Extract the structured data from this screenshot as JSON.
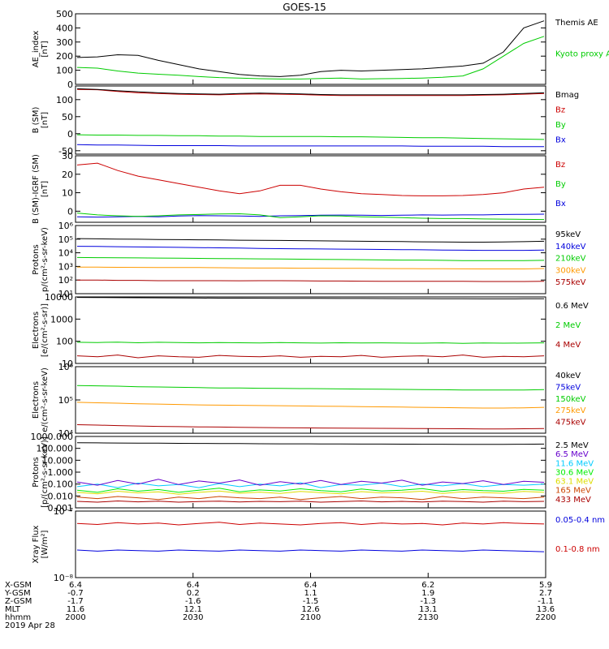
{
  "title": "GOES-15",
  "colors": {
    "black": "#000000",
    "green": "#00cc00",
    "blue": "#0000dd",
    "red": "#cc0000",
    "orange": "#ff9900",
    "cyan": "#00ccff",
    "purple": "#6600cc",
    "lightgreen": "#00ee00",
    "yellow": "#dddd00",
    "darkred": "#aa0000",
    "darkorange": "#cc4400"
  },
  "chart_data": [
    {
      "type": "line",
      "ylabel": "AE_index\n[nT]",
      "yscale": "linear",
      "ylim": [
        0,
        500
      ],
      "yticks": [
        "0",
        "100",
        "200",
        "300",
        "400",
        "500"
      ],
      "series": [
        {
          "name": "Kyoto proxy AE",
          "color": "green",
          "values": [
            120,
            115,
            95,
            80,
            72,
            65,
            55,
            48,
            45,
            40,
            38,
            38,
            42,
            44,
            38,
            40,
            42,
            45,
            50,
            60,
            110,
            200,
            290,
            340
          ]
        },
        {
          "name": "Themis AE",
          "color": "black",
          "values": [
            190,
            195,
            210,
            205,
            170,
            140,
            110,
            90,
            70,
            60,
            55,
            65,
            90,
            100,
            95,
            100,
            105,
            110,
            120,
            130,
            150,
            230,
            400,
            450
          ]
        }
      ]
    },
    {
      "type": "line",
      "ylabel": "B (SM)\n[nT]",
      "yscale": "linear",
      "ylim": [
        -60,
        140
      ],
      "yticks": [
        "-50",
        "0",
        "50",
        "100"
      ],
      "series": [
        {
          "name": "Bx",
          "color": "blue",
          "values": [
            -32,
            -33,
            -33,
            -34,
            -35,
            -35,
            -35,
            -35,
            -36,
            -36,
            -36,
            -36,
            -36,
            -36,
            -36,
            -36,
            -36,
            -37,
            -37,
            -37,
            -37,
            -38,
            -38,
            -38
          ]
        },
        {
          "name": "By",
          "color": "green",
          "values": [
            -3,
            -4,
            -4,
            -5,
            -5,
            -6,
            -6,
            -7,
            -7,
            -8,
            -8,
            -8,
            -8,
            -9,
            -9,
            -10,
            -11,
            -12,
            -12,
            -13,
            -14,
            -15,
            -16,
            -17
          ]
        },
        {
          "name": "Bz",
          "color": "red",
          "values": [
            130,
            129,
            124,
            120,
            118,
            116,
            115,
            114,
            116,
            117,
            116,
            115,
            113,
            112,
            112,
            112,
            112,
            112,
            112,
            112,
            113,
            114,
            116,
            118
          ]
        },
        {
          "name": "Bmag",
          "color": "black",
          "values": [
            132,
            130,
            126,
            123,
            120,
            118,
            117,
            116,
            118,
            119,
            118,
            117,
            115,
            114,
            114,
            114,
            114,
            114,
            114,
            114,
            115,
            116,
            118,
            120
          ]
        }
      ]
    },
    {
      "type": "line",
      "ylabel": "B (SM)-IGRF (SM)\n[nT]",
      "yscale": "linear",
      "ylim": [
        -6,
        30
      ],
      "yticks": [
        "0",
        "10",
        "20",
        "30"
      ],
      "series": [
        {
          "name": "Bx",
          "color": "blue",
          "values": [
            -3,
            -3.2,
            -3,
            -2.8,
            -3,
            -2.6,
            -2.4,
            -2.5,
            -2.6,
            -2.8,
            -2.5,
            -2.4,
            -2.2,
            -2.1,
            -2.2,
            -2.3,
            -2.2,
            -2,
            -2.1,
            -2,
            -2,
            -1.8,
            -1.7,
            -1.6
          ]
        },
        {
          "name": "By",
          "color": "green",
          "values": [
            -1,
            -2,
            -2.5,
            -2.8,
            -2.5,
            -2,
            -1.8,
            -1.5,
            -1.4,
            -2,
            -3.5,
            -3,
            -2.5,
            -2.6,
            -3,
            -3.2,
            -3.5,
            -3.8,
            -4,
            -4,
            -4.2,
            -4.3,
            -4.4,
            -4.5
          ]
        },
        {
          "name": "Bz",
          "color": "red",
          "values": [
            25,
            26,
            22,
            19,
            17,
            15,
            13,
            11,
            9.5,
            11,
            14,
            14,
            12,
            10.5,
            9.5,
            9,
            8.5,
            8.3,
            8.3,
            8.5,
            9,
            10,
            12,
            13
          ]
        }
      ]
    },
    {
      "type": "line",
      "ylabel": "Protons\np/(cm²-s-sr-keV)",
      "yscale": "log",
      "ylim": [
        10,
        1000000
      ],
      "yticks": [
        "10¹",
        "10²",
        "10³",
        "10⁴",
        "10⁵",
        "10⁶"
      ],
      "series": [
        {
          "name": "575keV",
          "color": "darkred",
          "values": [
            100,
            100,
            95,
            95,
            90,
            90,
            90,
            90,
            88,
            90,
            90,
            88,
            85,
            85,
            82,
            80,
            80,
            80,
            80,
            80,
            78,
            78,
            78,
            80
          ]
        },
        {
          "name": "300keV",
          "color": "orange",
          "values": [
            900,
            880,
            860,
            850,
            840,
            830,
            820,
            800,
            780,
            760,
            760,
            740,
            740,
            720,
            720,
            700,
            690,
            680,
            680,
            660,
            650,
            650,
            650,
            700
          ]
        },
        {
          "name": "210keV",
          "color": "green",
          "values": [
            4500,
            4400,
            4300,
            4200,
            4100,
            4000,
            3900,
            3800,
            3700,
            3600,
            3500,
            3400,
            3300,
            3200,
            3100,
            3000,
            2900,
            2900,
            2800,
            2700,
            2700,
            2700,
            2700,
            2800
          ]
        },
        {
          "name": "140keV",
          "color": "blue",
          "values": [
            30000,
            29000,
            28000,
            27000,
            26000,
            25000,
            24000,
            23000,
            22000,
            21000,
            20000,
            19500,
            19000,
            18500,
            18000,
            17500,
            17000,
            16500,
            16000,
            15500,
            15000,
            15000,
            15000,
            16000
          ]
        },
        {
          "name": "95keV",
          "color": "black",
          "values": [
            110000,
            105000,
            100000,
            98000,
            95000,
            92000,
            90000,
            87000,
            84000,
            82000,
            80000,
            78000,
            75000,
            73000,
            70000,
            68000,
            66000,
            64000,
            62000,
            60000,
            60000,
            62000,
            65000,
            70000
          ]
        }
      ]
    },
    {
      "type": "line",
      "ylabel": "Electrons\n[e/(cm²-s-sr)]",
      "yscale": "log",
      "ylim": [
        10,
        10000
      ],
      "yticks": [
        "10",
        "100",
        "1000",
        "10000"
      ],
      "series": [
        {
          "name": "4 MeV",
          "color": "darkred",
          "values": [
            22,
            20,
            24,
            18,
            22,
            20,
            19,
            23,
            21,
            20,
            22,
            19,
            21,
            20,
            23,
            19,
            21,
            22,
            20,
            24,
            19,
            21,
            20,
            22
          ]
        },
        {
          "name": "2 MeV",
          "color": "green",
          "values": [
            90,
            88,
            92,
            86,
            90,
            87,
            85,
            88,
            86,
            84,
            87,
            85,
            83,
            86,
            84,
            85,
            83,
            82,
            85,
            81,
            84,
            82,
            83,
            85
          ]
        },
        {
          "name": "0.6 MeV",
          "color": "black",
          "values": [
            9500,
            9400,
            9300,
            9200,
            9100,
            9000,
            8900,
            8850,
            8800,
            8750,
            8700,
            8650,
            8600,
            8550,
            8500,
            8450,
            8400,
            8350,
            8300,
            8250,
            8200,
            8200,
            8250,
            8300
          ]
        }
      ]
    },
    {
      "type": "line",
      "ylabel": "Electrons\ne/(cm²-s-sr-keV)",
      "yscale": "log",
      "ylim": [
        10000,
        1000000
      ],
      "yticks": [
        "10⁴",
        "10⁵",
        "10⁶"
      ],
      "series": [
        {
          "name": "475keV",
          "color": "darkred",
          "values": [
            18000,
            17500,
            17000,
            16500,
            16000,
            15800,
            15500,
            15300,
            15000,
            14800,
            14600,
            14500,
            14300,
            14200,
            14100,
            14000,
            13900,
            13800,
            13700,
            13600,
            13500,
            13500,
            13600,
            13800
          ]
        },
        {
          "name": "275keV",
          "color": "orange",
          "values": [
            85000,
            82000,
            80000,
            77000,
            75000,
            73000,
            71000,
            70000,
            69000,
            68000,
            67000,
            66000,
            65000,
            64000,
            63000,
            62000,
            61000,
            60000,
            59000,
            58000,
            57000,
            57000,
            58000,
            60000
          ]
        },
        {
          "name": "150keV",
          "color": "green",
          "values": [
            270000,
            265000,
            260000,
            250000,
            245000,
            240000,
            235000,
            230000,
            228000,
            225000,
            222000,
            220000,
            218000,
            215000,
            212000,
            210000,
            208000,
            205000,
            203000,
            200000,
            198000,
            198000,
            200000,
            205000
          ]
        },
        {
          "name": "75keV",
          "color": "blue",
          "values": []
        },
        {
          "name": "40keV",
          "color": "black",
          "values": []
        }
      ]
    },
    {
      "type": "line",
      "ylabel": "Protons\n[p/(cm²-s-sr-keV)]",
      "yscale": "log",
      "ylim": [
        0.001,
        1000
      ],
      "yticks": [
        "0.001",
        "0.010",
        "0.100",
        "1.000",
        "10.000",
        "100.000",
        "1000.000"
      ],
      "series": [
        {
          "name": "433 MeV",
          "color": "darkred",
          "values": [
            0.0035,
            0.003,
            0.0038,
            0.0032,
            0.0036,
            0.003,
            0.0034,
            0.0037,
            0.0031,
            0.0035,
            0.0033,
            0.0036,
            0.003,
            0.0034,
            0.0038,
            0.0032,
            0.0035,
            0.0031,
            0.0036,
            0.0034,
            0.003,
            0.0037,
            0.0033,
            0.0035
          ]
        },
        {
          "name": "165 MeV",
          "color": "darkorange",
          "values": [
            0.008,
            0.006,
            0.009,
            0.007,
            0.005,
            0.008,
            0.006,
            0.009,
            0.007,
            0.006,
            0.008,
            0.005,
            0.007,
            0.009,
            0.006,
            0.008,
            0.007,
            0.005,
            0.009,
            0.006,
            0.008,
            0.007,
            0.006,
            0.008
          ]
        },
        {
          "name": "63.1 MeV",
          "color": "yellow",
          "values": [
            0.02,
            0.015,
            0.025,
            0.018,
            0.022,
            0.014,
            0.02,
            0.026,
            0.017,
            0.021,
            0.016,
            0.024,
            0.019,
            0.015,
            0.023,
            0.018,
            0.02,
            0.025,
            0.016,
            0.022,
            0.019,
            0.017,
            0.024,
            0.02
          ]
        },
        {
          "name": "30.6 MeV",
          "color": "lightgreen",
          "values": [
            0.03,
            0.02,
            0.04,
            0.025,
            0.035,
            0.02,
            0.03,
            0.045,
            0.022,
            0.032,
            0.026,
            0.04,
            0.028,
            0.022,
            0.038,
            0.026,
            0.03,
            0.042,
            0.024,
            0.034,
            0.028,
            0.025,
            0.036,
            0.03
          ]
        },
        {
          "name": "11.6 MeV",
          "color": "cyan",
          "values": [
            0.06,
            0.1,
            0.05,
            0.12,
            0.07,
            0.09,
            0.05,
            0.11,
            0.06,
            0.1,
            0.07,
            0.13,
            0.05,
            0.09,
            0.08,
            0.12,
            0.06,
            0.1,
            0.07,
            0.11,
            0.06,
            0.09,
            0.08,
            0.1
          ]
        },
        {
          "name": "6.5 MeV",
          "color": "purple",
          "values": [
            0.15,
            0.08,
            0.2,
            0.1,
            0.25,
            0.09,
            0.18,
            0.12,
            0.22,
            0.08,
            0.16,
            0.1,
            0.2,
            0.09,
            0.17,
            0.12,
            0.21,
            0.08,
            0.15,
            0.11,
            0.19,
            0.09,
            0.17,
            0.14
          ]
        },
        {
          "name": "2.5 MeV",
          "color": "black",
          "values": [
            300,
            290,
            280,
            275,
            270,
            265,
            260,
            255,
            250,
            245,
            240,
            238,
            235,
            232,
            230,
            228,
            225,
            222,
            220,
            218,
            215,
            215,
            220,
            230
          ]
        }
      ]
    },
    {
      "type": "line",
      "ylabel": "Xray Flux\n[W/m²]",
      "yscale": "log",
      "ylim": [
        1e-08,
        1e-07
      ],
      "yticks": [
        "10⁻⁸",
        "10⁻⁷"
      ],
      "series": [
        {
          "name": "0.1-0.8 nm",
          "color": "red",
          "values": [
            6.5e-08,
            6.3e-08,
            6.7e-08,
            6.4e-08,
            6.6e-08,
            6.2e-08,
            6.5e-08,
            6.8e-08,
            6.3e-08,
            6.6e-08,
            6.4e-08,
            6.2e-08,
            6.5e-08,
            6.7e-08,
            6.3e-08,
            6.6e-08,
            6.4e-08,
            6.5e-08,
            6.2e-08,
            6.6e-08,
            6.4e-08,
            6.7e-08,
            6.5e-08,
            6.4e-08
          ]
        },
        {
          "name": "0.05-0.4 nm",
          "color": "blue",
          "values": [
            2.6e-08,
            2.5e-08,
            2.6e-08,
            2.55e-08,
            2.5e-08,
            2.6e-08,
            2.55e-08,
            2.5e-08,
            2.6e-08,
            2.55e-08,
            2.5e-08,
            2.6e-08,
            2.55e-08,
            2.5e-08,
            2.6e-08,
            2.55e-08,
            2.5e-08,
            2.6e-08,
            2.55e-08,
            2.5e-08,
            2.6e-08,
            2.55e-08,
            2.5e-08,
            2.45e-08
          ]
        }
      ]
    }
  ],
  "orbit_table": {
    "labels": [
      "X-GSM",
      "Y-GSM",
      "Z-GSM",
      "MLT",
      "hhmm",
      "2019 Apr 28"
    ],
    "columns": [
      [
        "6.4",
        "-0.7",
        "-1.7",
        "11.6",
        "2000"
      ],
      [
        "6.4",
        "0.2",
        "-1.6",
        "12.1",
        "2030"
      ],
      [
        "6.4",
        "1.1",
        "-1.5",
        "12.6",
        "2100"
      ],
      [
        "6.2",
        "1.9",
        "-1.3",
        "13.1",
        "2130"
      ],
      [
        "5.9",
        "2.7",
        "-1.1",
        "13.6",
        "2200"
      ]
    ]
  }
}
